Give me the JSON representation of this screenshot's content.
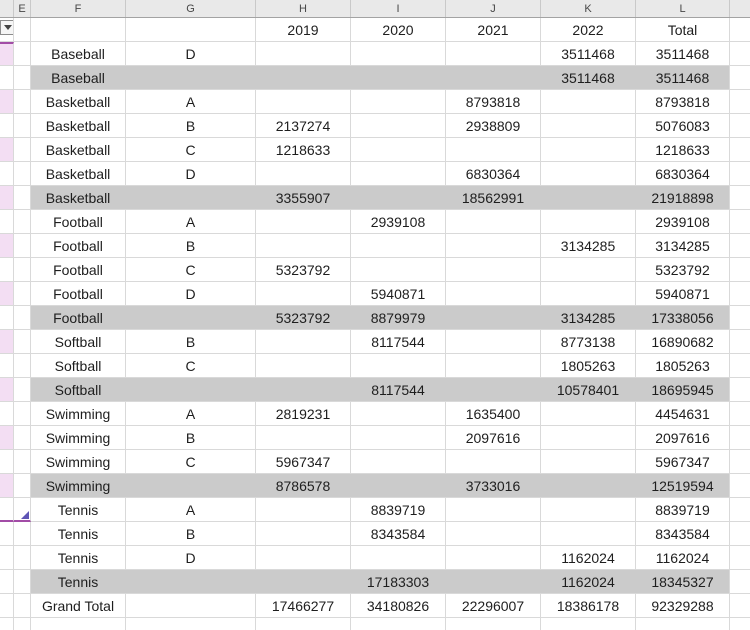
{
  "sheet": {
    "column_letters": [
      "E",
      "F",
      "G",
      "H",
      "I",
      "J",
      "K",
      "L"
    ]
  },
  "pivot": {
    "year_headers": [
      "2019",
      "2020",
      "2021",
      "2022"
    ],
    "total_header": "Total",
    "rows": [
      {
        "kind": "data",
        "band": true,
        "sport": "Baseball",
        "group": "D",
        "v2019": "",
        "v2020": "",
        "v2021": "",
        "v2022": "3511468",
        "total": "3511468"
      },
      {
        "kind": "subtotal",
        "band": false,
        "sport": "Baseball",
        "group": "",
        "v2019": "",
        "v2020": "",
        "v2021": "",
        "v2022": "3511468",
        "total": "3511468"
      },
      {
        "kind": "data",
        "band": true,
        "sport": "Basketball",
        "group": "A",
        "v2019": "",
        "v2020": "",
        "v2021": "8793818",
        "v2022": "",
        "total": "8793818"
      },
      {
        "kind": "data",
        "band": false,
        "sport": "Basketball",
        "group": "B",
        "v2019": "2137274",
        "v2020": "",
        "v2021": "2938809",
        "v2022": "",
        "total": "5076083"
      },
      {
        "kind": "data",
        "band": true,
        "sport": "Basketball",
        "group": "C",
        "v2019": "1218633",
        "v2020": "",
        "v2021": "",
        "v2022": "",
        "total": "1218633"
      },
      {
        "kind": "data",
        "band": false,
        "sport": "Basketball",
        "group": "D",
        "v2019": "",
        "v2020": "",
        "v2021": "6830364",
        "v2022": "",
        "total": "6830364"
      },
      {
        "kind": "subtotal",
        "band": true,
        "sport": "Basketball",
        "group": "",
        "v2019": "3355907",
        "v2020": "",
        "v2021": "18562991",
        "v2022": "",
        "total": "21918898"
      },
      {
        "kind": "data",
        "band": false,
        "sport": "Football",
        "group": "A",
        "v2019": "",
        "v2020": "2939108",
        "v2021": "",
        "v2022": "",
        "total": "2939108"
      },
      {
        "kind": "data",
        "band": true,
        "sport": "Football",
        "group": "B",
        "v2019": "",
        "v2020": "",
        "v2021": "",
        "v2022": "3134285",
        "total": "3134285"
      },
      {
        "kind": "data",
        "band": false,
        "sport": "Football",
        "group": "C",
        "v2019": "5323792",
        "v2020": "",
        "v2021": "",
        "v2022": "",
        "total": "5323792"
      },
      {
        "kind": "data",
        "band": true,
        "sport": "Football",
        "group": "D",
        "v2019": "",
        "v2020": "5940871",
        "v2021": "",
        "v2022": "",
        "total": "5940871"
      },
      {
        "kind": "subtotal",
        "band": false,
        "sport": "Football",
        "group": "",
        "v2019": "5323792",
        "v2020": "8879979",
        "v2021": "",
        "v2022": "3134285",
        "total": "17338056"
      },
      {
        "kind": "data",
        "band": true,
        "sport": "Softball",
        "group": "B",
        "v2019": "",
        "v2020": "8117544",
        "v2021": "",
        "v2022": "8773138",
        "total": "16890682"
      },
      {
        "kind": "data",
        "band": false,
        "sport": "Softball",
        "group": "C",
        "v2019": "",
        "v2020": "",
        "v2021": "",
        "v2022": "1805263",
        "total": "1805263"
      },
      {
        "kind": "subtotal",
        "band": true,
        "sport": "Softball",
        "group": "",
        "v2019": "",
        "v2020": "8117544",
        "v2021": "",
        "v2022": "10578401",
        "total": "18695945"
      },
      {
        "kind": "data",
        "band": false,
        "sport": "Swimming",
        "group": "A",
        "v2019": "2819231",
        "v2020": "",
        "v2021": "1635400",
        "v2022": "",
        "total": "4454631"
      },
      {
        "kind": "data",
        "band": true,
        "sport": "Swimming",
        "group": "B",
        "v2019": "",
        "v2020": "",
        "v2021": "2097616",
        "v2022": "",
        "total": "2097616"
      },
      {
        "kind": "data",
        "band": false,
        "sport": "Swimming",
        "group": "C",
        "v2019": "5967347",
        "v2020": "",
        "v2021": "",
        "v2022": "",
        "total": "5967347"
      },
      {
        "kind": "subtotal",
        "band": true,
        "sport": "Swimming",
        "group": "",
        "v2019": "8786578",
        "v2020": "",
        "v2021": "3733016",
        "v2022": "",
        "total": "12519594"
      },
      {
        "kind": "data",
        "band": false,
        "table_end": true,
        "sport": "Tennis",
        "group": "A",
        "v2019": "",
        "v2020": "8839719",
        "v2021": "",
        "v2022": "",
        "total": "8839719"
      },
      {
        "kind": "data",
        "band": false,
        "sport": "Tennis",
        "group": "B",
        "v2019": "",
        "v2020": "8343584",
        "v2021": "",
        "v2022": "",
        "total": "8343584"
      },
      {
        "kind": "data",
        "band": false,
        "sport": "Tennis",
        "group": "D",
        "v2019": "",
        "v2020": "",
        "v2021": "",
        "v2022": "1162024",
        "total": "1162024"
      },
      {
        "kind": "subtotal",
        "band": false,
        "sport": "Tennis",
        "group": "",
        "v2019": "",
        "v2020": "17183303",
        "v2021": "",
        "v2022": "1162024",
        "total": "18345327"
      },
      {
        "kind": "grand",
        "band": false,
        "sport": "Grand Total",
        "group": "",
        "v2019": "17466277",
        "v2020": "34180826",
        "v2021": "22296007",
        "v2022": "18386178",
        "total": "92329288"
      }
    ]
  },
  "colors": {
    "band_gray": "#cbcbcb",
    "stripe_pink": "#f3def3",
    "gridline": "#d9d9d9",
    "header_bg": "#e9e9e9",
    "header_text": "#474747",
    "header_sep": "#c9c9c9",
    "header_border": "#a3a3a3",
    "table_border": "#a24ca6",
    "handle_purple": "#5f55b5",
    "text": "#1e1e1e"
  }
}
